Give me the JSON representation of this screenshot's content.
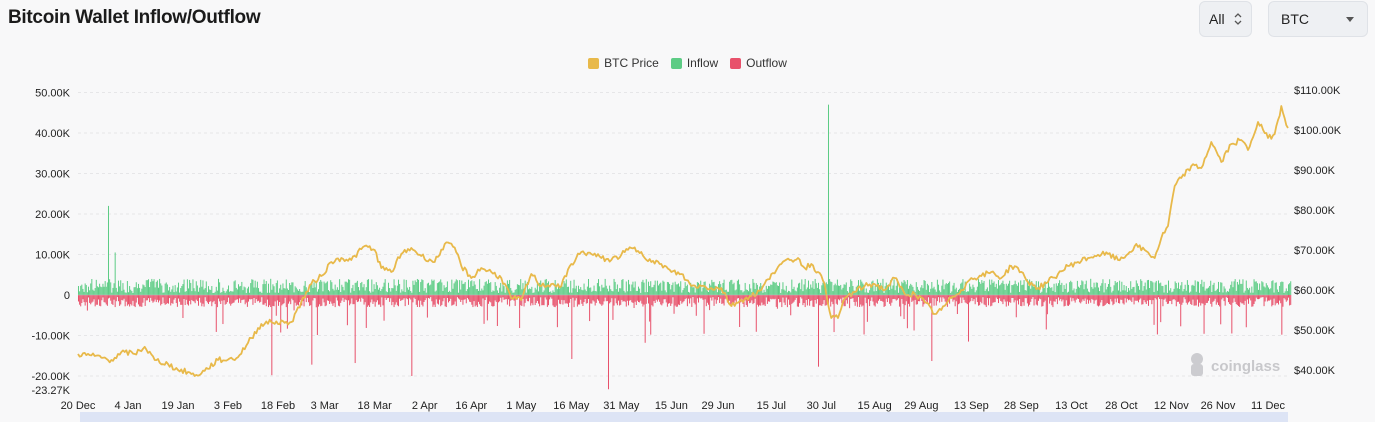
{
  "header": {
    "title": "Bitcoin Wallet Inflow/Outflow",
    "range_select": "All",
    "coin_select": "BTC"
  },
  "watermark": "coinglass",
  "colors": {
    "price": "#e8b94a",
    "inflow": "#5dcc85",
    "outflow": "#e8516b",
    "grid": "#e6e6e8"
  },
  "chart_data": {
    "type": "line",
    "legend": [
      {
        "name": "BTC Price",
        "color": "#e8b94a"
      },
      {
        "name": "Inflow",
        "color": "#5dcc85"
      },
      {
        "name": "Outflow",
        "color": "#e8516b"
      }
    ],
    "left_axis": {
      "ticks": [
        "50.00K",
        "40.00K",
        "30.00K",
        "20.00K",
        "10.00K",
        "0",
        "-10.00K",
        "-20.00K",
        "-23.27K"
      ],
      "tick_values": [
        50000,
        40000,
        30000,
        20000,
        10000,
        0,
        -10000,
        -20000,
        -23270
      ],
      "range": [
        -23270,
        50000
      ]
    },
    "right_axis": {
      "ticks": [
        "$110.00K",
        "$100.00K",
        "$90.00K",
        "$80.00K",
        "$70.00K",
        "$60.00K",
        "$50.00K",
        "$40.00K"
      ],
      "tick_values": [
        110000,
        100000,
        90000,
        80000,
        70000,
        60000,
        50000,
        40000
      ],
      "range": [
        33800,
        110000
      ]
    },
    "x_axis": {
      "range_days": [
        0,
        363
      ],
      "ticks": [
        "20 Dec",
        "4 Jan",
        "19 Jan",
        "3 Feb",
        "18 Feb",
        "3 Mar",
        "18 Mar",
        "2 Apr",
        "16 Apr",
        "1 May",
        "16 May",
        "31 May",
        "15 Jun",
        "29 Jun",
        "15 Jul",
        "30 Jul",
        "15 Aug",
        "29 Aug",
        "13 Sep",
        "28 Sep",
        "13 Oct",
        "28 Oct",
        "12 Nov",
        "26 Nov",
        "11 Dec"
      ],
      "tick_days": [
        0,
        15,
        30,
        45,
        60,
        74,
        89,
        104,
        118,
        133,
        148,
        163,
        178,
        192,
        208,
        223,
        239,
        253,
        268,
        283,
        298,
        313,
        328,
        342,
        357
      ]
    },
    "series": [
      {
        "name": "BTC Price",
        "axis": "right",
        "points": [
          [
            0,
            44000
          ],
          [
            5,
            43500
          ],
          [
            10,
            42500
          ],
          [
            14,
            44500
          ],
          [
            17,
            44000
          ],
          [
            20,
            45800
          ],
          [
            23,
            42500
          ],
          [
            27,
            41500
          ],
          [
            30,
            40000
          ],
          [
            33,
            39500
          ],
          [
            35,
            38500
          ],
          [
            38,
            39800
          ],
          [
            42,
            42500
          ],
          [
            45,
            42600
          ],
          [
            48,
            43200
          ],
          [
            52,
            48000
          ],
          [
            55,
            51500
          ],
          [
            58,
            52000
          ],
          [
            62,
            51800
          ],
          [
            64,
            52000
          ],
          [
            67,
            57000
          ],
          [
            70,
            61500
          ],
          [
            73,
            63500
          ],
          [
            76,
            67000
          ],
          [
            79,
            68000
          ],
          [
            82,
            67500
          ],
          [
            86,
            71000
          ],
          [
            89,
            70000
          ],
          [
            91,
            65500
          ],
          [
            94,
            64500
          ],
          [
            97,
            69000
          ],
          [
            100,
            70500
          ],
          [
            103,
            68500
          ],
          [
            107,
            67000
          ],
          [
            110,
            71500
          ],
          [
            113,
            70600
          ],
          [
            115,
            66000
          ],
          [
            118,
            63000
          ],
          [
            121,
            65500
          ],
          [
            124,
            64500
          ],
          [
            127,
            63000
          ],
          [
            130,
            58000
          ],
          [
            133,
            57500
          ],
          [
            136,
            64000
          ],
          [
            139,
            61000
          ],
          [
            142,
            61500
          ],
          [
            145,
            61000
          ],
          [
            148,
            66500
          ],
          [
            151,
            69500
          ],
          [
            154,
            69000
          ],
          [
            157,
            68000
          ],
          [
            160,
            67500
          ],
          [
            163,
            68800
          ],
          [
            166,
            70500
          ],
          [
            169,
            69500
          ],
          [
            172,
            67000
          ],
          [
            175,
            66500
          ],
          [
            178,
            64500
          ],
          [
            181,
            64000
          ],
          [
            184,
            61000
          ],
          [
            187,
            61000
          ],
          [
            190,
            60500
          ],
          [
            193,
            60500
          ],
          [
            196,
            56000
          ],
          [
            199,
            57500
          ],
          [
            202,
            58500
          ],
          [
            205,
            60000
          ],
          [
            208,
            64000
          ],
          [
            211,
            66500
          ],
          [
            214,
            67500
          ],
          [
            216,
            68000
          ],
          [
            218,
            65500
          ],
          [
            220,
            66500
          ],
          [
            222,
            64500
          ],
          [
            224,
            61500
          ],
          [
            226,
            53000
          ],
          [
            228,
            53000
          ],
          [
            230,
            58000
          ],
          [
            233,
            59500
          ],
          [
            236,
            61000
          ],
          [
            239,
            61500
          ],
          [
            242,
            60000
          ],
          [
            245,
            63000
          ],
          [
            248,
            59000
          ],
          [
            251,
            59000
          ],
          [
            254,
            57000
          ],
          [
            257,
            54000
          ],
          [
            259,
            55000
          ],
          [
            262,
            58000
          ],
          [
            265,
            60000
          ],
          [
            268,
            63000
          ],
          [
            271,
            63500
          ],
          [
            274,
            64500
          ],
          [
            277,
            63000
          ],
          [
            280,
            66000
          ],
          [
            282,
            65500
          ],
          [
            285,
            62000
          ],
          [
            288,
            60500
          ],
          [
            291,
            62000
          ],
          [
            294,
            64000
          ],
          [
            297,
            66000
          ],
          [
            300,
            67000
          ],
          [
            303,
            68000
          ],
          [
            306,
            68800
          ],
          [
            309,
            69000
          ],
          [
            312,
            67500
          ],
          [
            315,
            69000
          ],
          [
            317,
            71000
          ],
          [
            320,
            70000
          ],
          [
            323,
            68000
          ],
          [
            325,
            73000
          ],
          [
            327,
            76000
          ],
          [
            329,
            86000
          ],
          [
            331,
            88000
          ],
          [
            334,
            91000
          ],
          [
            337,
            90500
          ],
          [
            340,
            97000
          ],
          [
            343,
            92000
          ],
          [
            346,
            96500
          ],
          [
            349,
            97500
          ],
          [
            351,
            95000
          ],
          [
            354,
            102000
          ],
          [
            357,
            98000
          ],
          [
            359,
            99000
          ],
          [
            361,
            106000
          ],
          [
            363,
            100500
          ]
        ]
      },
      {
        "name": "Inflow",
        "axis": "left",
        "spikes": [
          [
            9,
            22000
          ],
          [
            11,
            10500
          ],
          [
            225,
            47000
          ]
        ],
        "typical_range": [
          500,
          4000
        ]
      },
      {
        "name": "Outflow",
        "axis": "left",
        "spikes": [
          [
            58,
            -19800
          ],
          [
            70,
            -17200
          ],
          [
            83,
            -16800
          ],
          [
            100,
            -20000
          ],
          [
            148,
            -15800
          ],
          [
            159,
            -23270
          ],
          [
            170,
            -11800
          ],
          [
            222,
            -17700
          ],
          [
            256,
            -16300
          ],
          [
            267,
            -11500
          ],
          [
            346,
            -9500
          ],
          [
            361,
            -9800
          ]
        ],
        "typical_range": [
          -3000,
          -500
        ]
      }
    ]
  }
}
